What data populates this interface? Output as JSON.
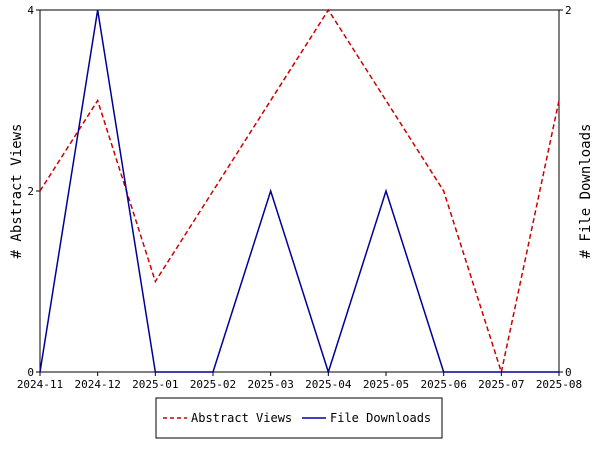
{
  "chart_data": {
    "type": "line",
    "categories": [
      "2024-11",
      "2024-12",
      "2025-01",
      "2025-02",
      "2025-03",
      "2025-04",
      "2025-05",
      "2025-06",
      "2025-07",
      "2025-08"
    ],
    "series": [
      {
        "name": "Abstract Views",
        "axis": "left",
        "color": "#cc0000",
        "style": "dashed",
        "values": [
          2,
          3,
          1,
          2,
          3,
          4,
          3,
          2,
          0,
          3
        ]
      },
      {
        "name": "File Downloads",
        "axis": "right",
        "color": "#000099",
        "style": "solid",
        "values": [
          0,
          2,
          0,
          0,
          1,
          0,
          1,
          0,
          0,
          0
        ]
      }
    ],
    "ylabel": "# Abstract Views",
    "y2label": "# File Downloads",
    "ylim": [
      0,
      4
    ],
    "y2lim": [
      0,
      2
    ],
    "yticks": [
      0,
      2,
      4
    ],
    "y2ticks": [
      0,
      2
    ],
    "grid": false,
    "legend_position": "bottom"
  }
}
